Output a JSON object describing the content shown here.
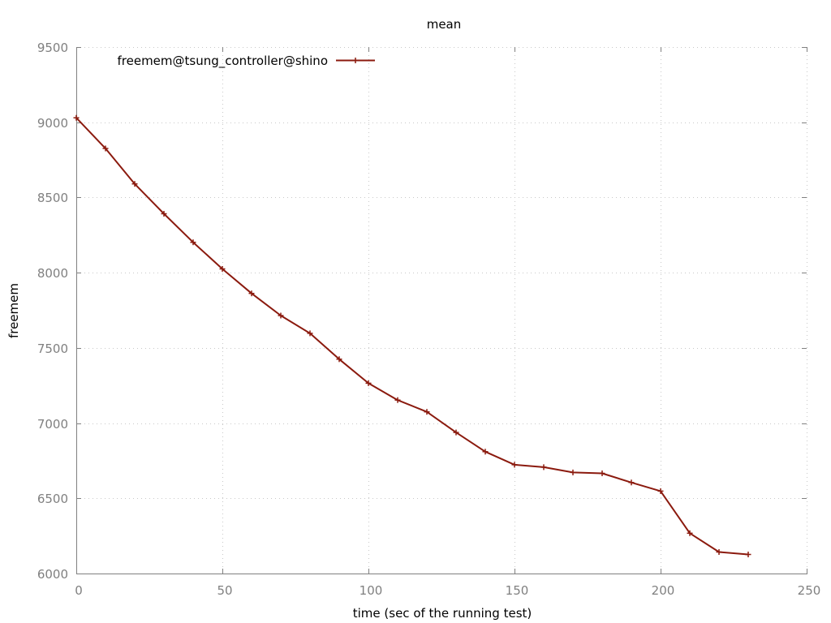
{
  "chart_data": {
    "type": "line",
    "title": "mean",
    "xlabel": "time (sec of the running test)",
    "ylabel": "freemem",
    "xlim": [
      0,
      250
    ],
    "ylim": [
      6000,
      9500
    ],
    "xticks": [
      0,
      50,
      100,
      150,
      200,
      250
    ],
    "yticks": [
      6000,
      6500,
      7000,
      7500,
      8000,
      8500,
      9000,
      9500
    ],
    "xtick_labels": [
      "0",
      "50",
      "100",
      "150",
      "200",
      "250"
    ],
    "ytick_labels": [
      "6000",
      "6500",
      "7000",
      "7500",
      "8000",
      "8500",
      "9000",
      "9500"
    ],
    "grid": true,
    "legend_position": "top-left",
    "series": [
      {
        "name": "freemem@tsung_controller@shino",
        "color": "#8b1a0e",
        "x": [
          0,
          10,
          20,
          30,
          40,
          50,
          60,
          70,
          80,
          90,
          100,
          110,
          120,
          130,
          140,
          150,
          160,
          170,
          180,
          190,
          200,
          210,
          220,
          230
        ],
        "y": [
          9030,
          8826,
          8590,
          8392,
          8202,
          8025,
          7862,
          7715,
          7597,
          7425,
          7265,
          7153,
          7075,
          6938,
          6810,
          6723,
          6707,
          6672,
          6666,
          6605,
          6548,
          6268,
          6143,
          6127
        ]
      }
    ]
  }
}
